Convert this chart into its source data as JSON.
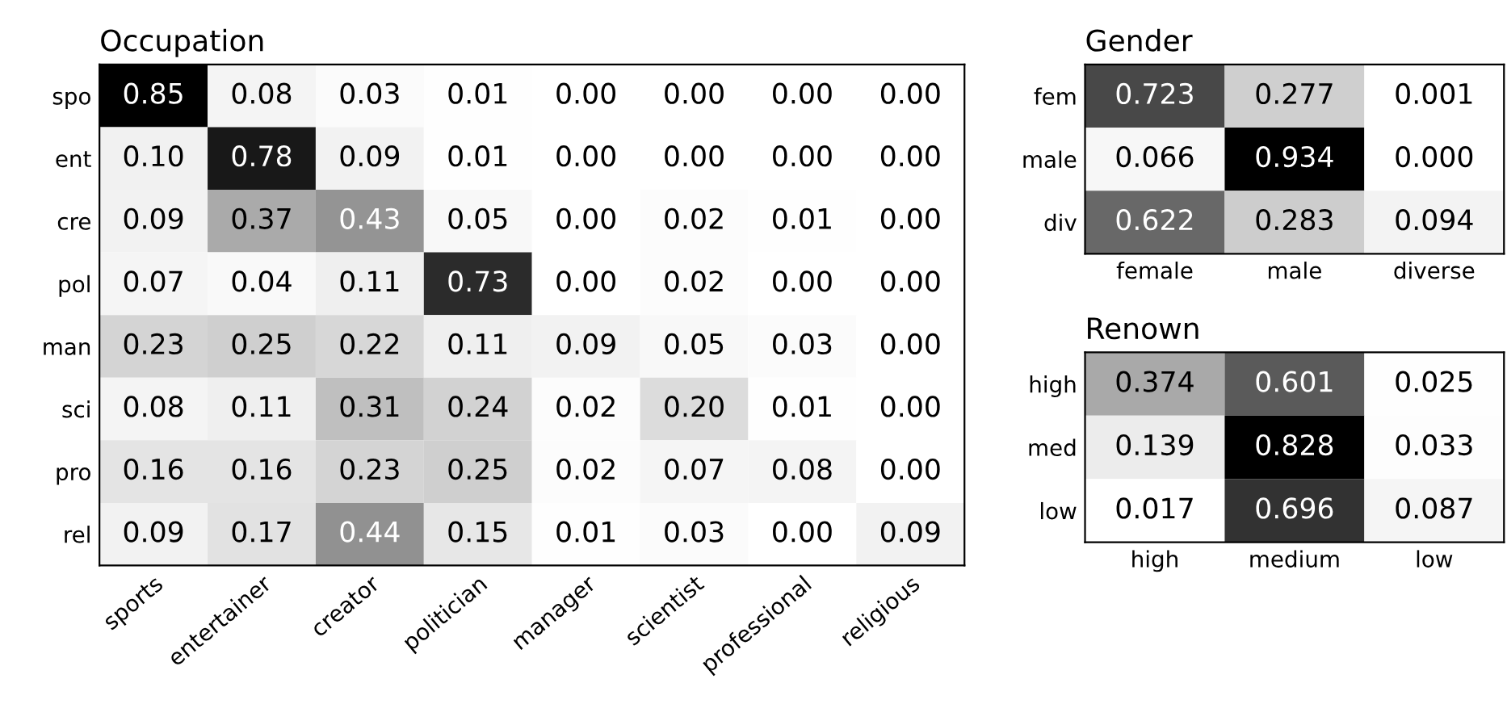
{
  "chart_data": [
    {
      "type": "heatmap",
      "title": "Occupation",
      "categories": [
        "sports",
        "entertainer",
        "creator",
        "politician",
        "manager",
        "scientist",
        "professional",
        "religious"
      ],
      "y_categories": [
        "spo",
        "ent",
        "cre",
        "pol",
        "man",
        "sci",
        "pro",
        "rel"
      ],
      "cells": [
        [
          0.85,
          0.08,
          0.03,
          0.01,
          0.0,
          0.0,
          0.0,
          0.0
        ],
        [
          0.1,
          0.78,
          0.09,
          0.01,
          0.0,
          0.0,
          0.0,
          0.0
        ],
        [
          0.09,
          0.37,
          0.43,
          0.05,
          0.0,
          0.02,
          0.01,
          0.0
        ],
        [
          0.07,
          0.04,
          0.11,
          0.73,
          0.0,
          0.02,
          0.0,
          0.0
        ],
        [
          0.23,
          0.25,
          0.22,
          0.11,
          0.09,
          0.05,
          0.03,
          0.0
        ],
        [
          0.08,
          0.11,
          0.31,
          0.24,
          0.02,
          0.2,
          0.01,
          0.0
        ],
        [
          0.16,
          0.16,
          0.23,
          0.25,
          0.02,
          0.07,
          0.08,
          0.0
        ],
        [
          0.09,
          0.17,
          0.44,
          0.15,
          0.01,
          0.03,
          0.0,
          0.09
        ]
      ],
      "cell_labels": [
        [
          "0.85",
          "0.08",
          "0.03",
          "0.01",
          "0.00",
          "0.00",
          "0.00",
          "0.00"
        ],
        [
          "0.10",
          "0.78",
          "0.09",
          "0.01",
          "0.00",
          "0.00",
          "0.00",
          "0.00"
        ],
        [
          "0.09",
          "0.37",
          "0.43",
          "0.05",
          "0.00",
          "0.02",
          "0.01",
          "0.00"
        ],
        [
          "0.07",
          "0.04",
          "0.11",
          "0.73",
          "0.00",
          "0.02",
          "0.00",
          "0.00"
        ],
        [
          "0.23",
          "0.25",
          "0.22",
          "0.11",
          "0.09",
          "0.05",
          "0.03",
          "0.00"
        ],
        [
          "0.08",
          "0.11",
          "0.31",
          "0.24",
          "0.02",
          "0.20",
          "0.01",
          "0.00"
        ],
        [
          "0.16",
          "0.16",
          "0.23",
          "0.25",
          "0.02",
          "0.07",
          "0.08",
          "0.00"
        ],
        [
          "0.09",
          "0.17",
          "0.44",
          "0.15",
          "0.01",
          "0.03",
          "0.00",
          "0.09"
        ]
      ]
    },
    {
      "type": "heatmap",
      "title": "Gender",
      "categories": [
        "female",
        "male",
        "diverse"
      ],
      "y_categories": [
        "fem",
        "male",
        "div"
      ],
      "cells": [
        [
          0.723,
          0.277,
          0.001
        ],
        [
          0.066,
          0.934,
          0.0
        ],
        [
          0.622,
          0.283,
          0.094
        ]
      ],
      "cell_labels": [
        [
          "0.723",
          "0.277",
          "0.001"
        ],
        [
          "0.066",
          "0.934",
          "0.000"
        ],
        [
          "0.622",
          "0.283",
          "0.094"
        ]
      ]
    },
    {
      "type": "heatmap",
      "title": "Renown",
      "categories": [
        "high",
        "medium",
        "low"
      ],
      "y_categories": [
        "high",
        "med",
        "low"
      ],
      "cells": [
        [
          0.374,
          0.601,
          0.025
        ],
        [
          0.139,
          0.828,
          0.033
        ],
        [
          0.017,
          0.696,
          0.087
        ]
      ],
      "cell_labels": [
        [
          "0.374",
          "0.601",
          "0.025"
        ],
        [
          "0.139",
          "0.828",
          "0.033"
        ],
        [
          "0.017",
          "0.696",
          "0.087"
        ]
      ]
    }
  ]
}
